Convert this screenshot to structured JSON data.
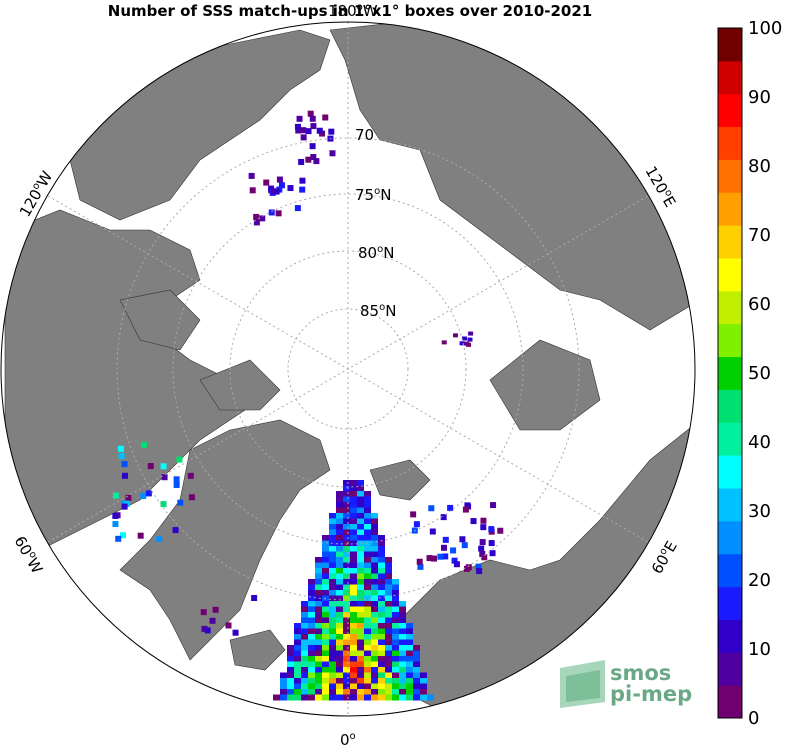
{
  "title": "Number of SSS match-ups in 1°x1° boxes over 2010-2021",
  "latitude_labels": [
    {
      "text": "70",
      "sup": "",
      "suffix": ""
    },
    {
      "text": "75",
      "sup": "o",
      "suffix": "N"
    },
    {
      "text": "80",
      "sup": "o",
      "suffix": "N"
    },
    {
      "text": "85",
      "sup": "o",
      "suffix": "N"
    }
  ],
  "longitude_labels": {
    "top": {
      "text": "180",
      "sup": "o",
      "suffix": "W"
    },
    "bottom": {
      "text": "0",
      "sup": "o",
      "suffix": ""
    },
    "upper_left": {
      "text": "120",
      "sup": "o",
      "suffix": "W"
    },
    "upper_right": {
      "text": "120",
      "sup": "o",
      "suffix": "E"
    },
    "lower_left": {
      "text": "60",
      "sup": "o",
      "suffix": "W"
    },
    "lower_right": {
      "text": "60",
      "sup": "o",
      "suffix": "E"
    }
  },
  "colorbar": {
    "min": 0,
    "max": 100,
    "tick_labels": [
      "100",
      "90",
      "80",
      "70",
      "60",
      "50",
      "40",
      "30",
      "20",
      "10",
      "0"
    ],
    "colors": [
      "#700070",
      "#5000a0",
      "#3000c8",
      "#1a1aff",
      "#0050ff",
      "#0090ff",
      "#00c0ff",
      "#00ffff",
      "#00f0a0",
      "#00e070",
      "#00d000",
      "#80f000",
      "#c0f000",
      "#ffff00",
      "#ffd000",
      "#ffa000",
      "#ff7000",
      "#ff4000",
      "#ff0000",
      "#d00000",
      "#700000"
    ]
  },
  "logo": {
    "line1": "smos",
    "line2": "pi-mep"
  },
  "colors": {
    "land": "#808080",
    "ocean": "#ffffff",
    "graticule": "#aaaaaa"
  }
}
